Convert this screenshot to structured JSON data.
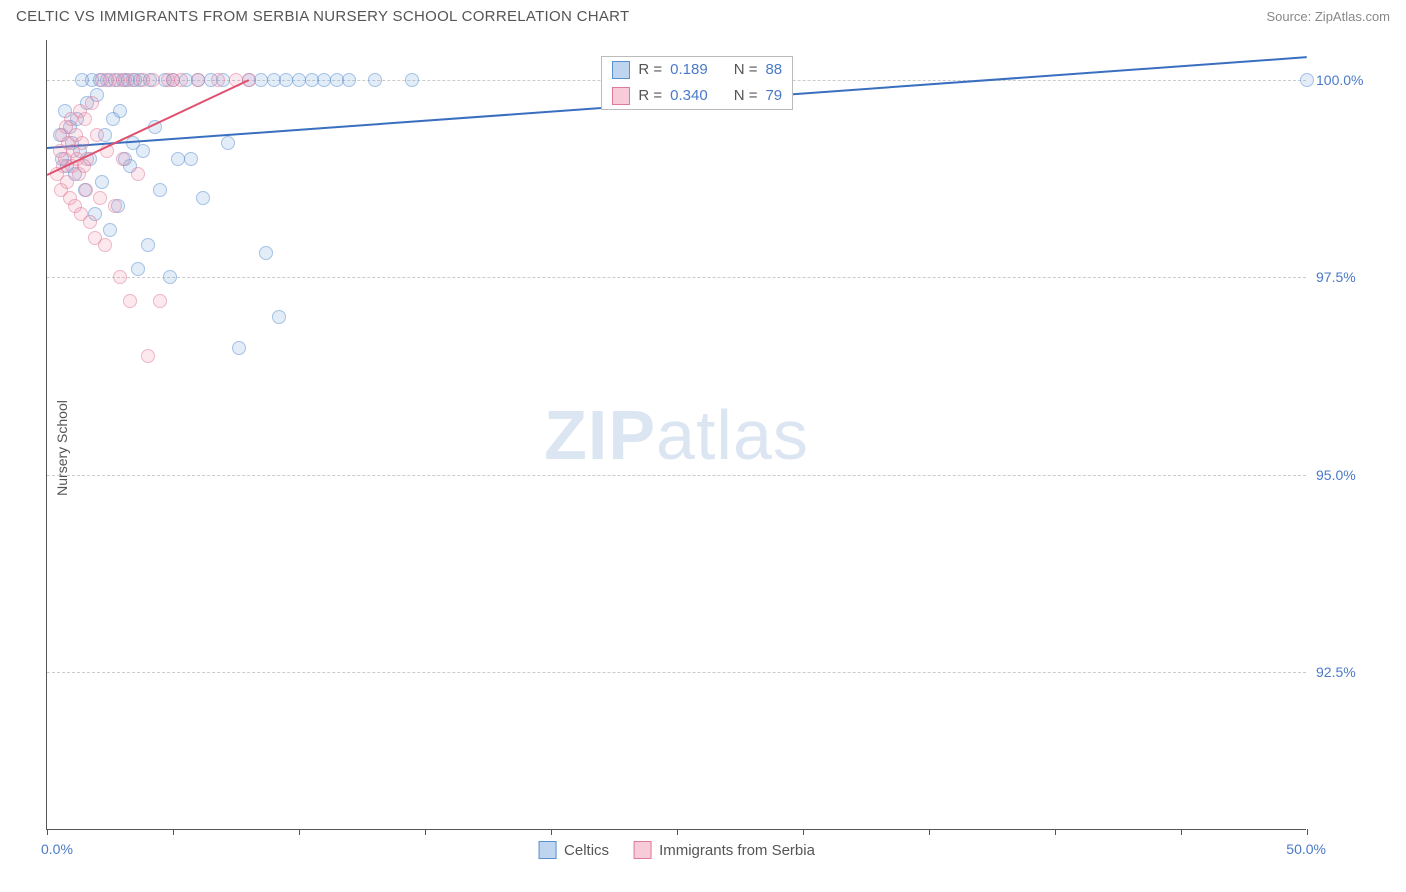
{
  "header": {
    "title": "CELTIC VS IMMIGRANTS FROM SERBIA NURSERY SCHOOL CORRELATION CHART",
    "source_label": "Source: ZipAtlas.com"
  },
  "chart": {
    "type": "scatter",
    "ylabel": "Nursery School",
    "xlim": [
      0,
      50
    ],
    "ylim": [
      90.5,
      100.5
    ],
    "xtick_positions": [
      0,
      5,
      10,
      15,
      20,
      25,
      30,
      35,
      40,
      45,
      50
    ],
    "xtick_labels": {
      "left": "0.0%",
      "right": "50.0%"
    },
    "ytick_positions": [
      92.5,
      95.0,
      97.5,
      100.0
    ],
    "ytick_labels": [
      "92.5%",
      "95.0%",
      "97.5%",
      "100.0%"
    ],
    "grid_color": "#cccccc",
    "background_color": "#ffffff",
    "axis_color": "#555555",
    "tick_label_color": "#4a7ac7",
    "marker_radius": 7,
    "watermark": {
      "text1": "ZIP",
      "text2": "atlas",
      "color": "#dce6f2",
      "fontsize": 70
    },
    "series": [
      {
        "name": "Celtics",
        "color": "#6ea0dc",
        "border_color": "#5a8fd0",
        "R": "0.189",
        "N": "88",
        "trend": {
          "x1": 0,
          "y1": 99.15,
          "x2": 50,
          "y2": 100.3,
          "color": "#3a6fc0",
          "width": 2
        },
        "points": [
          [
            0.5,
            99.3
          ],
          [
            0.6,
            99.0
          ],
          [
            0.7,
            99.6
          ],
          [
            0.8,
            98.9
          ],
          [
            0.9,
            99.4
          ],
          [
            1.0,
            99.2
          ],
          [
            1.1,
            98.8
          ],
          [
            1.2,
            99.5
          ],
          [
            1.3,
            99.1
          ],
          [
            1.4,
            100.0
          ],
          [
            1.5,
            98.6
          ],
          [
            1.6,
            99.7
          ],
          [
            1.7,
            99.0
          ],
          [
            1.8,
            100.0
          ],
          [
            1.9,
            98.3
          ],
          [
            2.0,
            99.8
          ],
          [
            2.1,
            100.0
          ],
          [
            2.2,
            98.7
          ],
          [
            2.3,
            99.3
          ],
          [
            2.4,
            100.0
          ],
          [
            2.5,
            98.1
          ],
          [
            2.6,
            99.5
          ],
          [
            2.7,
            100.0
          ],
          [
            2.8,
            98.4
          ],
          [
            2.9,
            99.6
          ],
          [
            3.0,
            100.0
          ],
          [
            3.1,
            99.0
          ],
          [
            3.2,
            100.0
          ],
          [
            3.3,
            98.9
          ],
          [
            3.4,
            99.2
          ],
          [
            3.5,
            100.0
          ],
          [
            3.6,
            97.6
          ],
          [
            3.7,
            100.0
          ],
          [
            3.8,
            99.1
          ],
          [
            4.0,
            97.9
          ],
          [
            4.1,
            100.0
          ],
          [
            4.3,
            99.4
          ],
          [
            4.5,
            98.6
          ],
          [
            4.7,
            100.0
          ],
          [
            4.9,
            97.5
          ],
          [
            5.0,
            100.0
          ],
          [
            5.2,
            99.0
          ],
          [
            5.5,
            100.0
          ],
          [
            5.7,
            99.0
          ],
          [
            6.0,
            100.0
          ],
          [
            6.2,
            98.5
          ],
          [
            6.5,
            100.0
          ],
          [
            7.0,
            100.0
          ],
          [
            7.2,
            99.2
          ],
          [
            7.6,
            96.6
          ],
          [
            8.0,
            100.0
          ],
          [
            8.5,
            100.0
          ],
          [
            8.7,
            97.8
          ],
          [
            9.0,
            100.0
          ],
          [
            9.2,
            97.0
          ],
          [
            9.5,
            100.0
          ],
          [
            10.0,
            100.0
          ],
          [
            10.5,
            100.0
          ],
          [
            11.0,
            100.0
          ],
          [
            11.5,
            100.0
          ],
          [
            12.0,
            100.0
          ],
          [
            13.0,
            100.0
          ],
          [
            14.5,
            100.0
          ],
          [
            50.0,
            100.0
          ]
        ]
      },
      {
        "name": "Immigrants from Serbia",
        "color": "#f08caa",
        "border_color": "#e07a9a",
        "R": "0.340",
        "N": "79",
        "trend": {
          "x1": 0,
          "y1": 98.8,
          "x2": 8.0,
          "y2": 100.0,
          "color": "#e0506f",
          "width": 2
        },
        "points": [
          [
            0.4,
            98.8
          ],
          [
            0.5,
            99.1
          ],
          [
            0.55,
            98.6
          ],
          [
            0.6,
            99.3
          ],
          [
            0.65,
            98.9
          ],
          [
            0.7,
            99.0
          ],
          [
            0.75,
            99.4
          ],
          [
            0.8,
            98.7
          ],
          [
            0.85,
            99.2
          ],
          [
            0.9,
            98.5
          ],
          [
            0.95,
            99.5
          ],
          [
            1.0,
            98.9
          ],
          [
            1.05,
            99.1
          ],
          [
            1.1,
            98.4
          ],
          [
            1.15,
            99.3
          ],
          [
            1.2,
            99.0
          ],
          [
            1.25,
            98.8
          ],
          [
            1.3,
            99.6
          ],
          [
            1.35,
            98.3
          ],
          [
            1.4,
            99.2
          ],
          [
            1.45,
            98.9
          ],
          [
            1.5,
            99.5
          ],
          [
            1.55,
            98.6
          ],
          [
            1.6,
            99.0
          ],
          [
            1.7,
            98.2
          ],
          [
            1.8,
            99.7
          ],
          [
            1.9,
            98.0
          ],
          [
            2.0,
            99.3
          ],
          [
            2.1,
            98.5
          ],
          [
            2.2,
            100.0
          ],
          [
            2.3,
            97.9
          ],
          [
            2.4,
            99.1
          ],
          [
            2.5,
            100.0
          ],
          [
            2.7,
            98.4
          ],
          [
            2.8,
            100.0
          ],
          [
            2.9,
            97.5
          ],
          [
            3.0,
            99.0
          ],
          [
            3.1,
            100.0
          ],
          [
            3.3,
            97.2
          ],
          [
            3.4,
            100.0
          ],
          [
            3.6,
            98.8
          ],
          [
            3.8,
            100.0
          ],
          [
            4.0,
            96.5
          ],
          [
            4.2,
            100.0
          ],
          [
            4.5,
            97.2
          ],
          [
            4.8,
            100.0
          ],
          [
            5.0,
            100.0
          ],
          [
            5.3,
            100.0
          ],
          [
            6.0,
            100.0
          ],
          [
            6.8,
            100.0
          ],
          [
            7.5,
            100.0
          ],
          [
            8.0,
            100.0
          ]
        ]
      }
    ],
    "stats_legend": {
      "left_pct": 44,
      "top_pct": 2,
      "fontsize": 15,
      "rows": [
        {
          "swatch": "blue",
          "R_label": "R =",
          "R_val": "0.189",
          "N_label": "N =",
          "N_val": "88"
        },
        {
          "swatch": "pink",
          "R_label": "R =",
          "R_val": "0.340",
          "N_label": "N =",
          "N_val": "79"
        }
      ]
    },
    "bottom_legend": {
      "items": [
        {
          "swatch": "blue",
          "label": "Celtics"
        },
        {
          "swatch": "pink",
          "label": "Immigrants from Serbia"
        }
      ]
    }
  }
}
